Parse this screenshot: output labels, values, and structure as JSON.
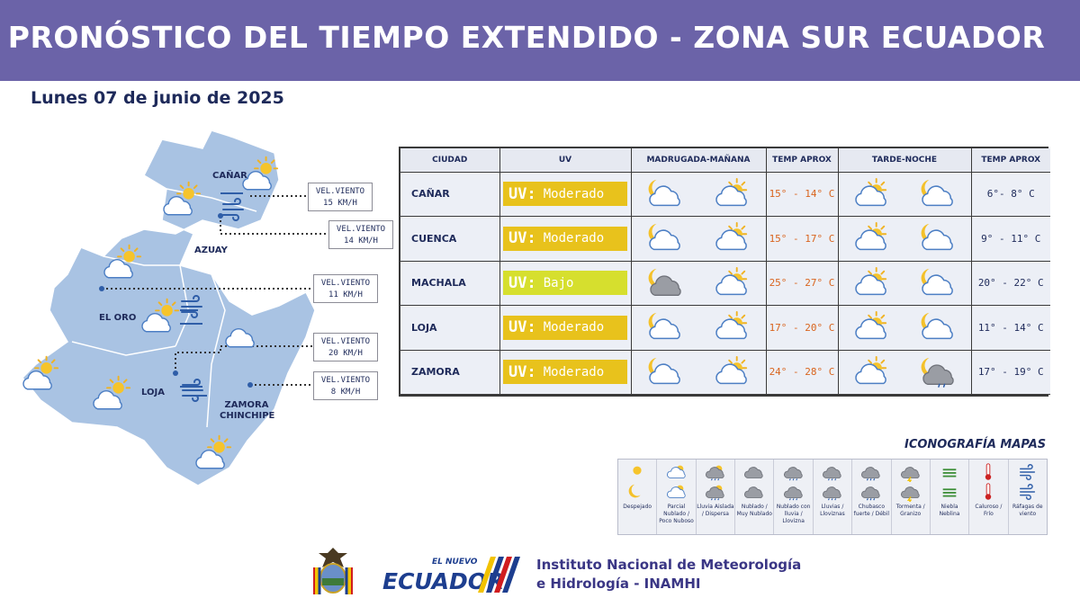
{
  "header": {
    "title": "PRONÓSTICO DEL TIEMPO EXTENDIDO  - ZONA SUR ECUADOR",
    "date": "Lunes 07 de junio de 2025"
  },
  "colors": {
    "header_bg": "#6b63a8",
    "uv_moderado": "#e8c21c",
    "uv_bajo": "#d6df2e",
    "temp_am": "#d9641e",
    "map_land": "#a9c3e3"
  },
  "map": {
    "regions": [
      {
        "name": "CAÑAR"
      },
      {
        "name": "AZUAY"
      },
      {
        "name": "EL ORO"
      },
      {
        "name": "LOJA"
      },
      {
        "name": "ZAMORA\nCHINCHIPE"
      }
    ],
    "wind": [
      {
        "label": "VEL.VIENTO",
        "value": "15 KM/H"
      },
      {
        "label": "VEL.VIENTO",
        "value": "14 KM/H"
      },
      {
        "label": "VEL.VIENTO",
        "value": "11 KM/H"
      },
      {
        "label": "VEL.VIENTO",
        "value": "20 KM/H"
      },
      {
        "label": "VEL.VIENTO",
        "value": "8 KM/H"
      }
    ]
  },
  "table": {
    "headers": [
      "CIUDAD",
      "UV",
      "MADRUGADA-MAÑANA",
      "TEMP APROX",
      "TARDE-NOCHE",
      "TEMP APROX"
    ],
    "rows": [
      {
        "city": "CAÑAR",
        "uv_tag": "UV:",
        "uv_level": "Moderado",
        "uv_color": "#e8c21c",
        "am_icons": [
          "moon-cloud",
          "sun-cloud"
        ],
        "temp_am": "15° - 14° C",
        "pm_icons": [
          "sun-cloud",
          "moon-cloud"
        ],
        "temp_pm": "6°- 8° C"
      },
      {
        "city": "CUENCA",
        "uv_tag": "UV:",
        "uv_level": "Moderado",
        "uv_color": "#e8c21c",
        "am_icons": [
          "moon-cloud",
          "sun-cloud"
        ],
        "temp_am": "15° - 17° C",
        "pm_icons": [
          "sun-cloud",
          "moon-cloud"
        ],
        "temp_pm": "9° - 11° C"
      },
      {
        "city": "MACHALA",
        "uv_tag": "UV:",
        "uv_level": "Bajo",
        "uv_color": "#d6df2e",
        "am_icons": [
          "moon-overcast",
          "sun-cloud"
        ],
        "temp_am": "25° - 27° C",
        "pm_icons": [
          "sun-cloud",
          "moon-cloud"
        ],
        "temp_pm": "20° - 22° C"
      },
      {
        "city": "LOJA",
        "uv_tag": "UV:",
        "uv_level": "Moderado",
        "uv_color": "#e8c21c",
        "am_icons": [
          "moon-cloud",
          "sun-cloud"
        ],
        "temp_am": "17° - 20° C",
        "pm_icons": [
          "sun-cloud",
          "moon-cloud"
        ],
        "temp_pm": "11° - 14° C"
      },
      {
        "city": "ZAMORA",
        "uv_tag": "UV:",
        "uv_level": "Moderado",
        "uv_color": "#e8c21c",
        "am_icons": [
          "moon-cloud",
          "sun-cloud"
        ],
        "temp_am": "24° - 28° C",
        "pm_icons": [
          "sun-cloud",
          "moon-drizzle"
        ],
        "temp_pm": "17° - 19° C"
      }
    ]
  },
  "legend": {
    "title": "ICONOGRAFÍA MAPAS",
    "items": [
      {
        "label": "Despejado",
        "icon": "sun-moon"
      },
      {
        "label": "Parcial Nublado / Poco Nuboso",
        "icon": "sun-cloud"
      },
      {
        "label": "Lluvia Aislada / Dispersa",
        "icon": "sun-rain"
      },
      {
        "label": "Nublado / Muy Nublado",
        "icon": "cloud"
      },
      {
        "label": "Nublado con lluvia / Llovizna",
        "icon": "cloud-drizzle"
      },
      {
        "label": "Lluvias / Lloviznas",
        "icon": "rain"
      },
      {
        "label": "Chubasco fuerte / Débil",
        "icon": "shower"
      },
      {
        "label": "Tormenta / Granizo",
        "icon": "storm"
      },
      {
        "label": "Niebla Neblina",
        "icon": "fog"
      },
      {
        "label": "Caluroso / Frío",
        "icon": "thermometer"
      },
      {
        "label": "Ráfagas de viento",
        "icon": "wind"
      }
    ]
  },
  "footer": {
    "brand_top": "EL NUEVO",
    "brand": "ECUADOR",
    "institution_line1": "Instituto Nacional de Meteorología",
    "institution_line2": "e Hidrología - INAMHI"
  }
}
